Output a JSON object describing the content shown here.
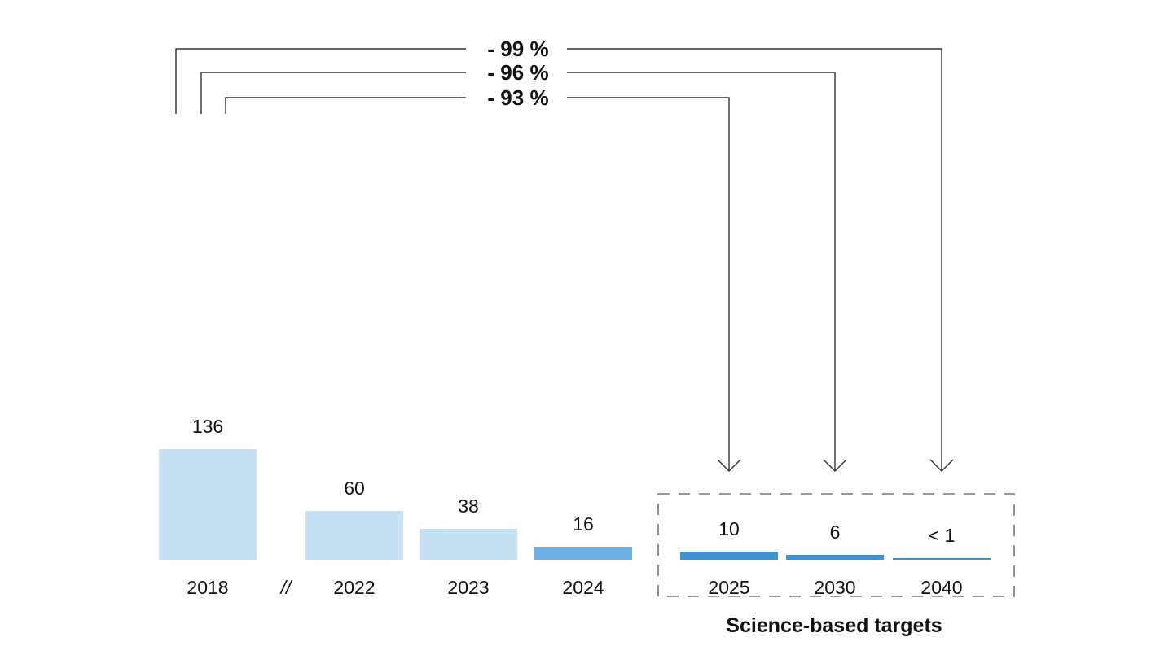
{
  "chart_data": {
    "type": "bar",
    "categories": [
      "2018",
      "2022",
      "2023",
      "2024",
      "2025",
      "2030",
      "2040"
    ],
    "values": [
      136,
      60,
      38,
      16,
      10,
      6,
      0.5
    ],
    "value_labels": [
      "136",
      "60",
      "38",
      "16",
      "10",
      "6",
      "< 1"
    ],
    "axis_break_mark": "//",
    "group_label": "Science-based targets",
    "reductions": [
      {
        "label": "- 99 %",
        "from": "2018",
        "to": "2040"
      },
      {
        "label": "- 96 %",
        "from": "2018",
        "to": "2030"
      },
      {
        "label": "- 93 %",
        "from": "2018",
        "to": "2025"
      }
    ],
    "colors": {
      "historic": "#c6e0f3",
      "current": "#6fb0e0",
      "target": "#3f93d2",
      "lines": "#333333",
      "group_border": "#777777"
    },
    "ylim": [
      0,
      136
    ],
    "grid": false,
    "legend": "none"
  }
}
